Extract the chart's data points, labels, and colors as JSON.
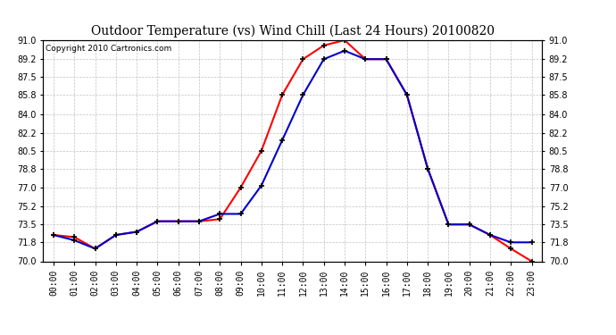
{
  "title": "Outdoor Temperature (vs) Wind Chill (Last 24 Hours) 20100820",
  "copyright": "Copyright 2010 Cartronics.com",
  "hours": [
    "00:00",
    "01:00",
    "02:00",
    "03:00",
    "04:00",
    "05:00",
    "06:00",
    "07:00",
    "08:00",
    "09:00",
    "10:00",
    "11:00",
    "12:00",
    "13:00",
    "14:00",
    "15:00",
    "16:00",
    "17:00",
    "18:00",
    "19:00",
    "20:00",
    "21:00",
    "22:00",
    "23:00"
  ],
  "outdoor_temp": [
    72.5,
    72.3,
    71.2,
    72.5,
    72.8,
    73.8,
    73.8,
    73.8,
    74.0,
    77.0,
    80.5,
    85.8,
    89.2,
    90.5,
    91.0,
    89.2,
    89.2,
    85.8,
    78.8,
    73.5,
    73.5,
    72.5,
    71.2,
    70.0
  ],
  "wind_chill": [
    72.5,
    72.0,
    71.2,
    72.5,
    72.8,
    73.8,
    73.8,
    73.8,
    74.5,
    74.5,
    77.2,
    81.5,
    85.8,
    89.2,
    90.0,
    89.2,
    89.2,
    85.8,
    78.8,
    73.5,
    73.5,
    72.5,
    71.8,
    71.8
  ],
  "temp_color": "#FF0000",
  "windchill_color": "#0000CC",
  "bg_color": "#FFFFFF",
  "plot_bg_color": "#FFFFFF",
  "grid_color": "#BBBBBB",
  "ymin": 70.0,
  "ymax": 91.0,
  "yticks": [
    70.0,
    71.8,
    73.5,
    75.2,
    77.0,
    78.8,
    80.5,
    82.2,
    84.0,
    85.8,
    87.5,
    89.2,
    91.0
  ],
  "title_fontsize": 10,
  "copyright_fontsize": 6.5,
  "tick_fontsize": 7
}
